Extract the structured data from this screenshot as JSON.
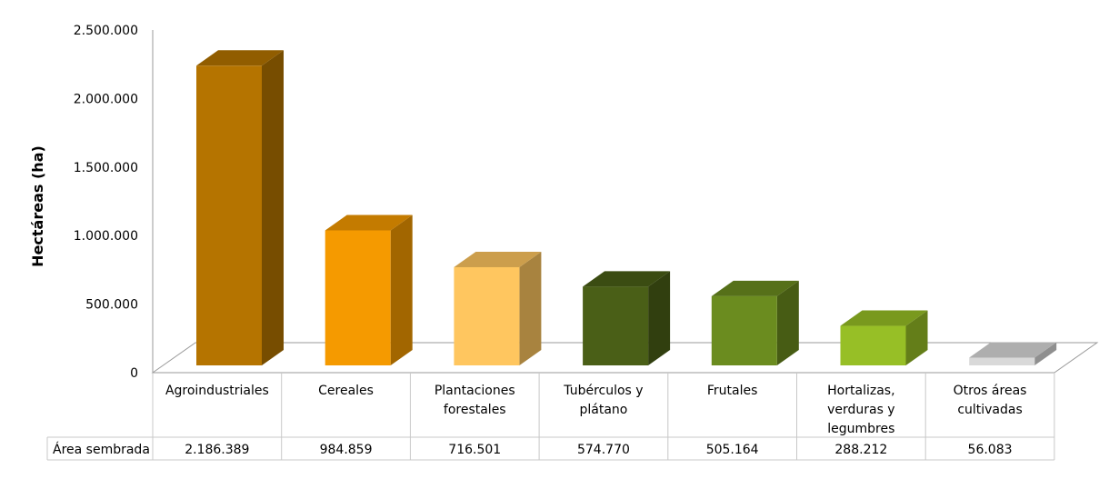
{
  "chart_data": {
    "type": "bar",
    "ylabel": "Hectáreas (ha)",
    "ylim": [
      0,
      2500000
    ],
    "y_ticks": [
      "0",
      "500.000",
      "1.000.000",
      "1.500.000",
      "2.000.000",
      "2.500.000"
    ],
    "y_tick_values": [
      0,
      500000,
      1000000,
      1500000,
      2000000,
      2500000
    ],
    "categories": [
      "Agroindustriales",
      "Cereales",
      "Plantaciones forestales",
      "Tubérculos y plátano",
      "Frutales",
      "Hortalizas, verduras y legumbres",
      "Otros áreas cultivadas"
    ],
    "category_lines": [
      [
        "Agroindustriales"
      ],
      [
        "Cereales"
      ],
      [
        "Plantaciones",
        "forestales"
      ],
      [
        "Tubérculos y",
        "plátano"
      ],
      [
        "Frutales"
      ],
      [
        "Hortalizas,",
        "verduras y",
        "legumbres"
      ],
      [
        "Otros áreas",
        "cultivadas"
      ]
    ],
    "series": [
      {
        "name": "Área sembrada",
        "values": [
          2186389,
          984859,
          716501,
          574770,
          505164,
          288212,
          56083
        ],
        "value_labels": [
          "2.186.389",
          "984.859",
          "716.501",
          "574.770",
          "505.164",
          "288.212",
          "56.083"
        ]
      }
    ],
    "bar_colors": [
      "#B57400",
      "#F59A00",
      "#FFC65F",
      "#4A5F17",
      "#6B8C1F",
      "#97BF26",
      "#D9D9D9"
    ],
    "data_table": true,
    "grid": false,
    "legend": "none",
    "style": "3d-column"
  }
}
